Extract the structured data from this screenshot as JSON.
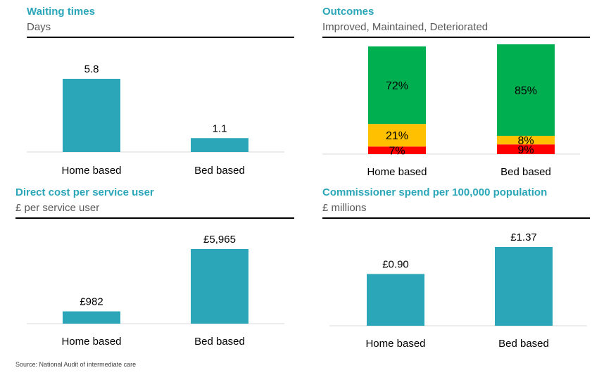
{
  "footer": {
    "source": "Source: National Audit of intermediate care"
  },
  "colors": {
    "bar": "#2aa6b8",
    "improved": "#00b050",
    "maintained": "#ffc000",
    "deteriorated": "#ff0000",
    "title": "#2aa6b8"
  },
  "chart_data": [
    {
      "type": "bar",
      "title": "Waiting times",
      "subtitle": "Days",
      "categories": [
        "Home based",
        "Bed based"
      ],
      "values": [
        5.8,
        1.1
      ],
      "value_labels": [
        "5.8",
        "1.1"
      ],
      "ylim": [
        0,
        5.8
      ]
    },
    {
      "type": "bar",
      "stacked": true,
      "percent": true,
      "title": "Outcomes",
      "subtitle": "Improved, Maintained, Deteriorated",
      "categories": [
        "Home based",
        "Bed based"
      ],
      "series": [
        {
          "key": "deteriorated",
          "values": [
            7,
            9
          ],
          "labels": [
            "7%",
            "9%"
          ]
        },
        {
          "key": "maintained",
          "values": [
            21,
            8
          ],
          "labels": [
            "21%",
            "8%"
          ]
        },
        {
          "key": "improved",
          "values": [
            72,
            85
          ],
          "labels": [
            "72%",
            "85%"
          ]
        }
      ],
      "ylim": [
        0,
        100
      ]
    },
    {
      "type": "bar",
      "title": "Direct cost per service user",
      "subtitle": "£ per service user",
      "categories": [
        "Home based",
        "Bed based"
      ],
      "values": [
        982,
        5965
      ],
      "value_labels": [
        "£982",
        "£5,965"
      ],
      "ylim": [
        0,
        5965
      ]
    },
    {
      "type": "bar",
      "title": "Commissioner spend per 100,000 population",
      "subtitle": "£ millions",
      "categories": [
        "Home based",
        "Bed based"
      ],
      "values": [
        0.9,
        1.37
      ],
      "value_labels": [
        "£0.90",
        "£1.37"
      ],
      "ylim": [
        0,
        1.37
      ]
    }
  ]
}
